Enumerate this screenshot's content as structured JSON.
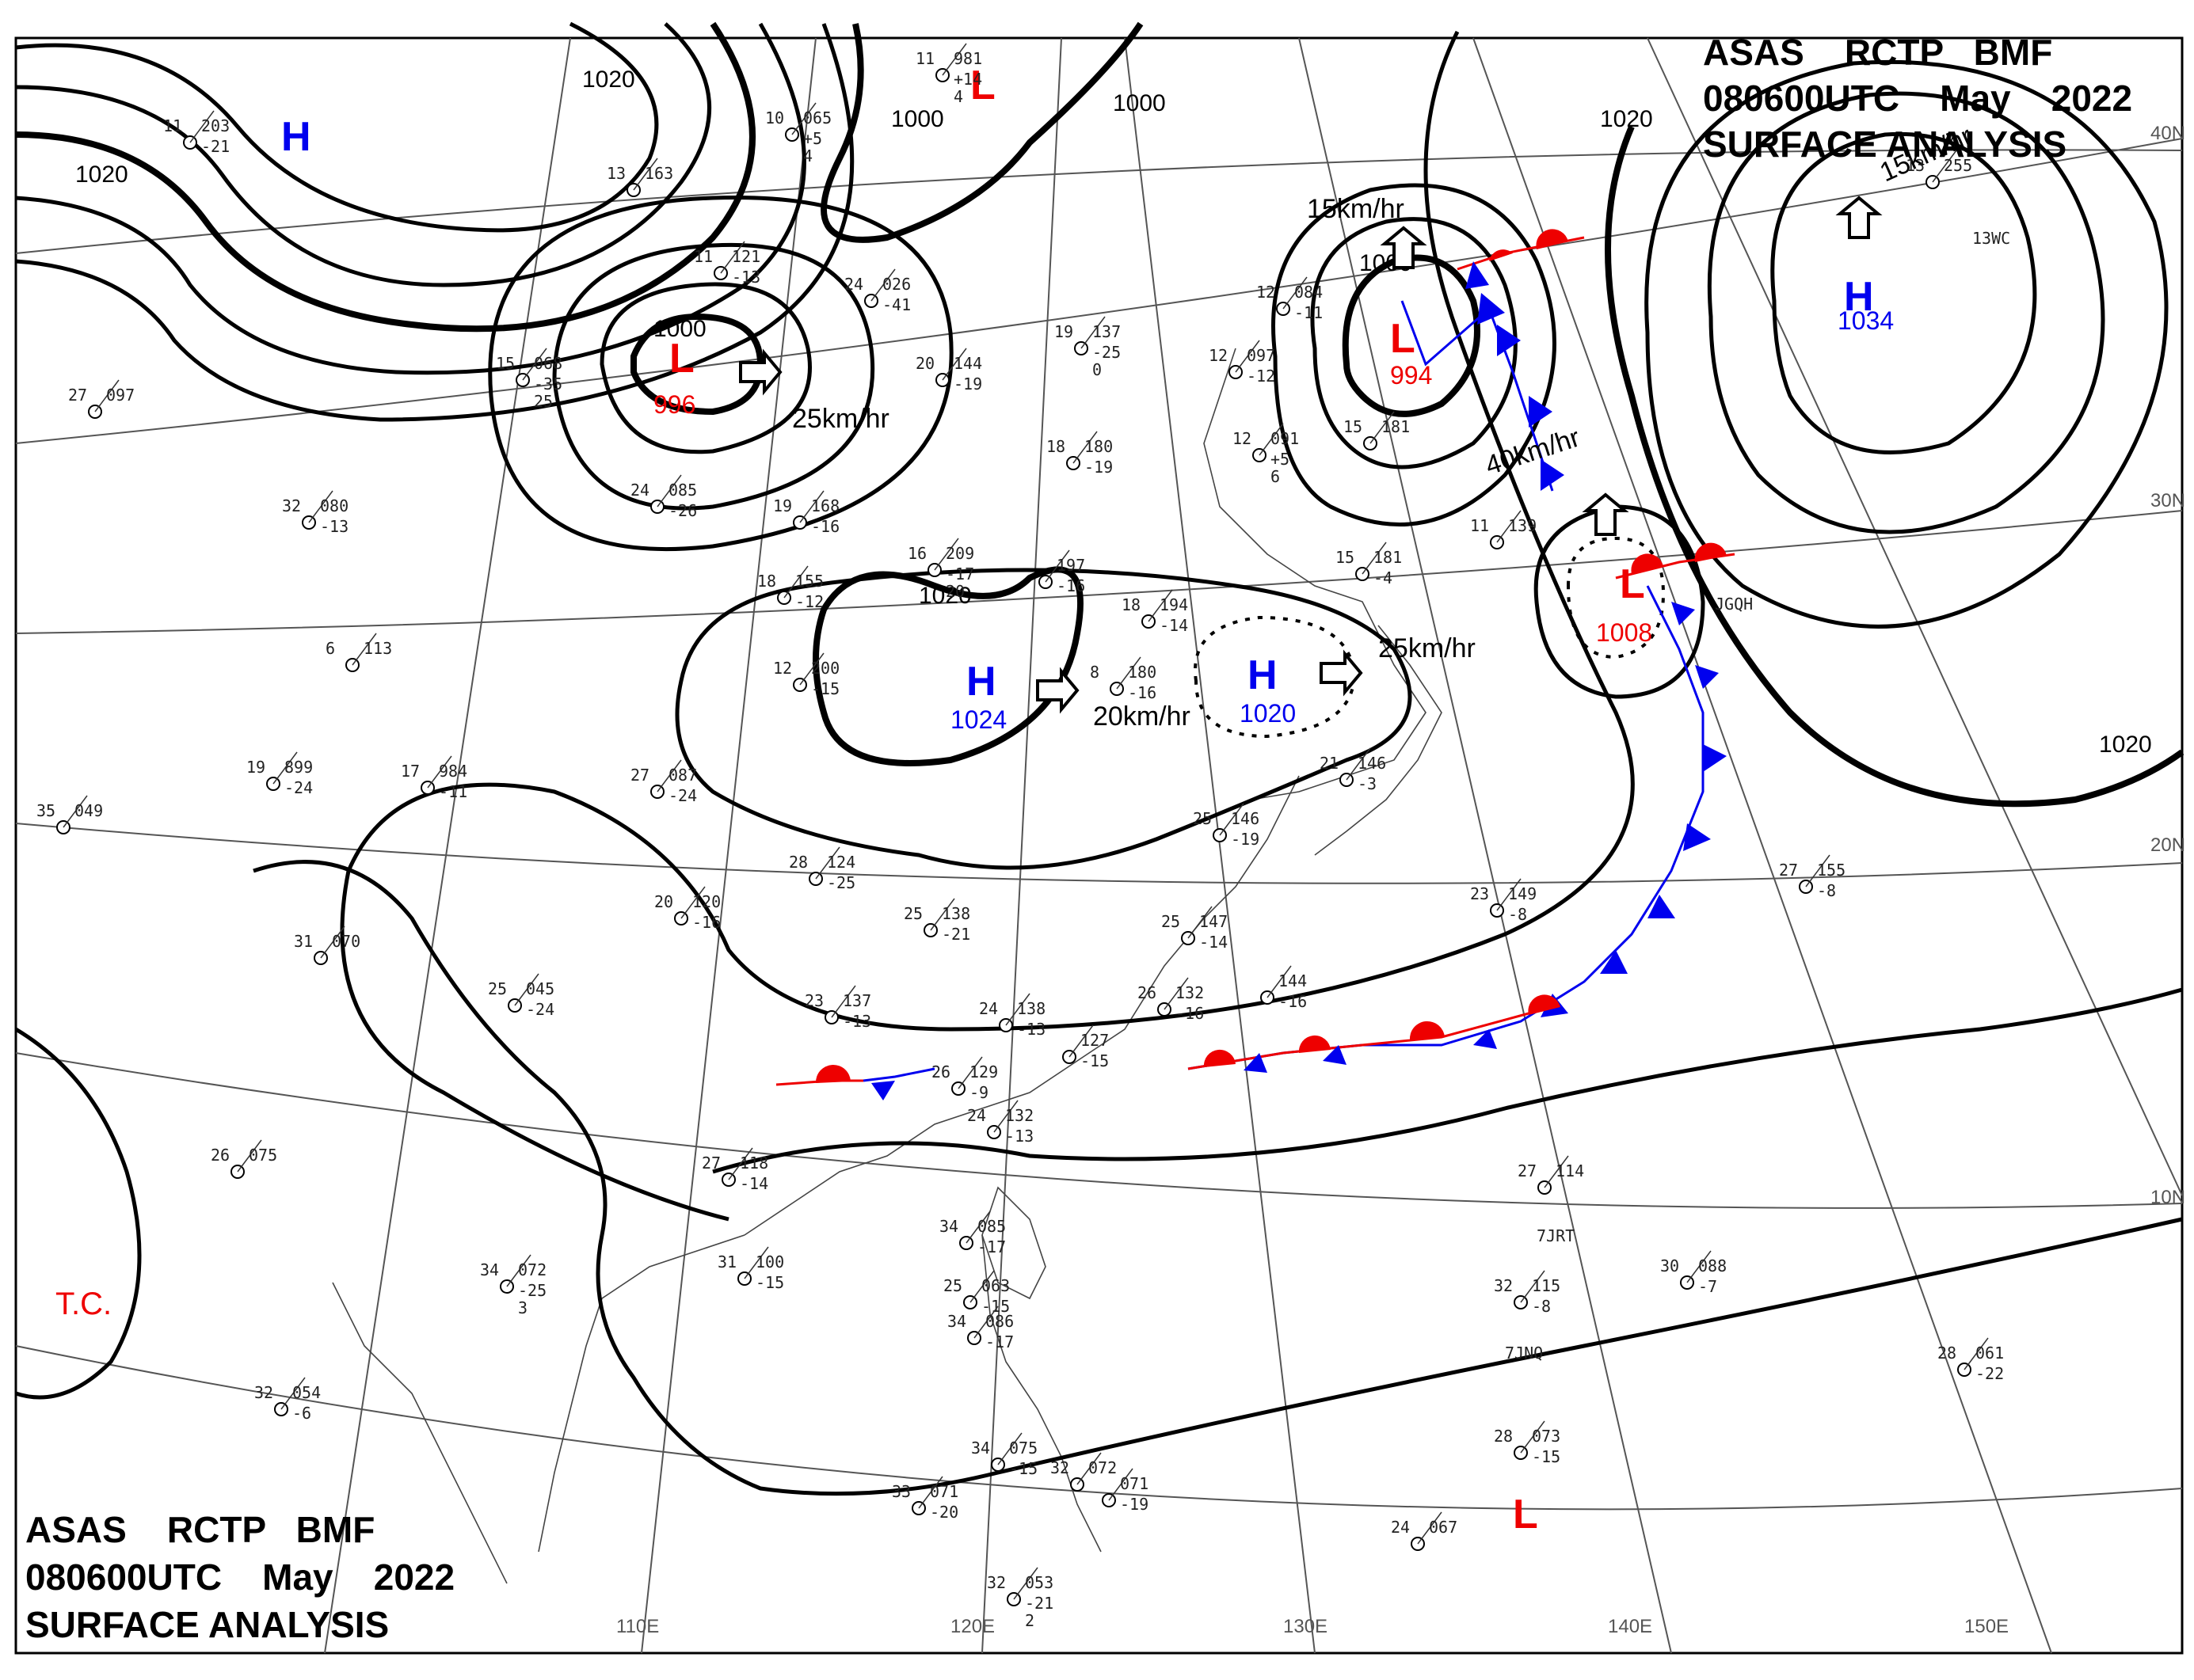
{
  "header_top": {
    "line1": "ASAS    RCTP   BMF",
    "line2": "080600UTC    May    2022",
    "line3": "SURFACE ANALYSIS"
  },
  "header_bottom": {
    "line1": "ASAS    RCTP   BMF",
    "line2": "080600UTC    May    2022",
    "line3": "SURFACE ANALYSIS"
  },
  "lat_labels": [
    "40N",
    "30N",
    "20N",
    "10N"
  ],
  "lon_labels": [
    "110E",
    "120E",
    "130E",
    "140E",
    "150E"
  ],
  "isobar_labels": [
    "1020",
    "1020",
    "1000",
    "1000",
    "1000",
    "1020",
    "1000",
    "1020",
    "1020"
  ],
  "pressure_systems": {
    "H_nw": {
      "symbol": "H"
    },
    "L_north": {
      "symbol": "L"
    },
    "L_mongolia": {
      "symbol": "L",
      "pressure": "996"
    },
    "L_japan_sea": {
      "symbol": "L",
      "pressure": "994"
    },
    "L_east": {
      "symbol": "L",
      "pressure": "1008"
    },
    "H_china": {
      "symbol": "H",
      "pressure": "1024"
    },
    "H_korea": {
      "symbol": "H",
      "pressure": "1020"
    },
    "H_pacific": {
      "symbol": "H",
      "pressure": "1034"
    },
    "L_south": {
      "symbol": "L"
    },
    "tc": "T.C."
  },
  "movement_labels": [
    "25km/hr",
    "15km/hr",
    "40km/hr",
    "20km/hr",
    "25km/hr",
    "15km/hr"
  ],
  "stations": [
    [
      "11",
      "981",
      "+14",
      "4"
    ],
    [
      "10",
      "065",
      "+5",
      "4"
    ],
    [
      "11",
      "203",
      "-21",
      ""
    ],
    [
      "13",
      "163",
      "",
      ""
    ],
    [
      "11",
      "121",
      "-13",
      ""
    ],
    [
      "24",
      "026",
      "-41",
      ""
    ],
    [
      "15",
      "068",
      "-35",
      "25"
    ],
    [
      "27",
      "097",
      "",
      ""
    ],
    [
      "24",
      "085",
      "-26",
      ""
    ],
    [
      "32",
      "080",
      "-13",
      ""
    ],
    [
      "19",
      "137",
      "-25",
      "0"
    ],
    [
      "20",
      "144",
      "-19",
      ""
    ],
    [
      "18",
      "180",
      "-19",
      ""
    ],
    [
      "19",
      "168",
      "-16",
      ""
    ],
    [
      "18",
      "155",
      "-12",
      ""
    ],
    [
      "16",
      "209",
      "-17",
      "20"
    ],
    [
      "",
      "197",
      "-16",
      ""
    ],
    [
      "18",
      "194",
      "-14",
      ""
    ],
    [
      "6",
      "113",
      "",
      ""
    ],
    [
      "12",
      "200",
      "-15",
      ""
    ],
    [
      "8",
      "180",
      "-16",
      ""
    ],
    [
      "17",
      "984",
      "-11",
      ""
    ],
    [
      "19",
      "899",
      "-24",
      ""
    ],
    [
      "35",
      "049",
      "",
      ""
    ],
    [
      "27",
      "087",
      "-24",
      ""
    ],
    [
      "28",
      "124",
      "-25",
      ""
    ],
    [
      "20",
      "120",
      "-16",
      ""
    ],
    [
      "25",
      "138",
      "-21",
      ""
    ],
    [
      "31",
      "070",
      "",
      ""
    ],
    [
      "25",
      "045",
      "-24",
      ""
    ],
    [
      "23",
      "137",
      "-13",
      ""
    ],
    [
      "24",
      "138",
      "-13",
      ""
    ],
    [
      "",
      "127",
      "-15",
      ""
    ],
    [
      "26",
      "132",
      "-16",
      ""
    ],
    [
      "25",
      "147",
      "-14",
      ""
    ],
    [
      "",
      "144",
      "-16",
      ""
    ],
    [
      "21",
      "146",
      "-3",
      ""
    ],
    [
      "15",
      "181",
      "-4",
      ""
    ],
    [
      "11",
      "139",
      "",
      ""
    ],
    [
      "12",
      "084",
      "-11",
      ""
    ],
    [
      "12",
      "097",
      "-12",
      ""
    ],
    [
      "12",
      "091",
      "+5",
      "6"
    ],
    [
      "15",
      "181",
      "",
      ""
    ],
    [
      "25",
      "146",
      "-19",
      ""
    ],
    [
      "23",
      "149",
      "-8",
      ""
    ],
    [
      "27",
      "155",
      "-8",
      ""
    ],
    [
      "13",
      "255",
      "",
      ""
    ],
    [
      "26",
      "075",
      "",
      ""
    ],
    [
      "26",
      "129",
      "-9",
      ""
    ],
    [
      "24",
      "132",
      "-13",
      ""
    ],
    [
      "27",
      "118",
      "-14",
      ""
    ],
    [
      "31",
      "100",
      "-15",
      ""
    ],
    [
      "34",
      "072",
      "-25",
      "3"
    ],
    [
      "32",
      "054",
      "-6",
      ""
    ],
    [
      "34",
      "085",
      "-17",
      ""
    ],
    [
      "25",
      "063",
      "-15",
      ""
    ],
    [
      "34",
      "086",
      "-17",
      ""
    ],
    [
      "34",
      "075",
      "-15",
      ""
    ],
    [
      "32",
      "072",
      "",
      ""
    ],
    [
      "33",
      "071",
      "-20",
      ""
    ],
    [
      "",
      "071",
      "-19",
      ""
    ],
    [
      "27",
      "114",
      "",
      ""
    ],
    [
      "30",
      "088",
      "-7",
      ""
    ],
    [
      "32",
      "115",
      "-8",
      ""
    ],
    [
      "28",
      "073",
      "-15",
      ""
    ],
    [
      "28",
      "061",
      "-22",
      ""
    ],
    [
      "24",
      "067",
      "",
      ""
    ],
    [
      "32",
      "053",
      "-21",
      "2"
    ]
  ],
  "ship_ids": [
    "JGQH",
    "7JRT",
    "7JNQ",
    "13WC"
  ]
}
